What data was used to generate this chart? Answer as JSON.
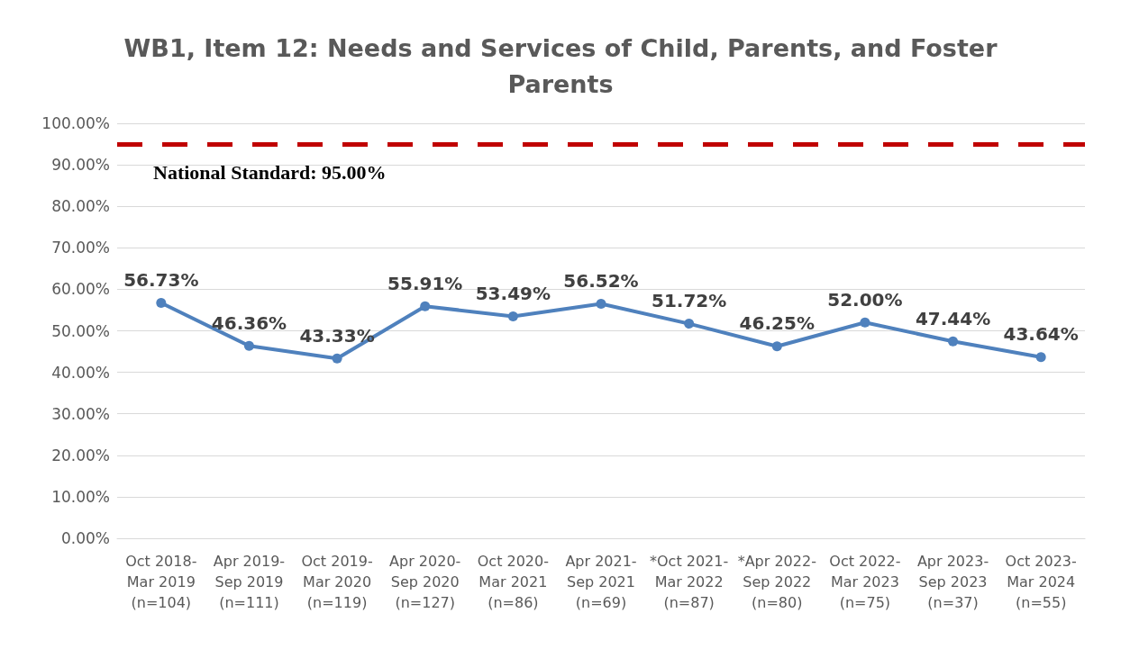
{
  "chart_data": {
    "type": "line",
    "title": "WB1, Item 12: Needs and Services of Child, Parents, and Foster\nParents",
    "categories": [
      "Oct 2018-\nMar 2019\n(n=104)",
      "Apr 2019-\nSep 2019\n(n=111)",
      "Oct 2019-\nMar 2020\n(n=119)",
      "Apr 2020-\nSep 2020\n(n=127)",
      "Oct 2020-\nMar 2021\n(n=86)",
      "Apr 2021-\nSep 2021\n(n=69)",
      "*Oct 2021-\nMar 2022\n(n=87)",
      "*Apr 2022-\nSep 2022\n(n=80)",
      "Oct 2022-\nMar 2023\n(n=75)",
      "Apr 2023-\nSep 2023\n(n=37)",
      "Oct 2023-\nMar 2024\n(n=55)"
    ],
    "series": [
      {
        "color": "#4f81bd",
        "values": [
          56.73,
          46.36,
          43.33,
          55.91,
          53.49,
          56.52,
          51.72,
          46.25,
          52.0,
          47.44,
          43.64
        ],
        "value_labels": [
          "56.73%",
          "46.36%",
          "43.33%",
          "55.91%",
          "53.49%",
          "56.52%",
          "51.72%",
          "46.25%",
          "52.00%",
          "47.44%",
          "43.64%"
        ]
      }
    ],
    "ylim": [
      0,
      100
    ],
    "yticks": [
      {
        "value": 0,
        "label": "0.00%"
      },
      {
        "value": 10,
        "label": "10.00%"
      },
      {
        "value": 20,
        "label": "20.00%"
      },
      {
        "value": 30,
        "label": "30.00%"
      },
      {
        "value": 40,
        "label": "40.00%"
      },
      {
        "value": 50,
        "label": "50.00%"
      },
      {
        "value": 60,
        "label": "60.00%"
      },
      {
        "value": 70,
        "label": "70.00%"
      },
      {
        "value": 80,
        "label": "80.00%"
      },
      {
        "value": 90,
        "label": "90.00%"
      },
      {
        "value": 100,
        "label": "100.00%"
      }
    ],
    "ref_lines": [
      {
        "axis": "y",
        "value": 95,
        "label": "National Standard: 95.00%",
        "color": "#c00000",
        "line_style": "dashed"
      }
    ],
    "grid": "y",
    "marker": "circle",
    "line_style": "solid"
  }
}
